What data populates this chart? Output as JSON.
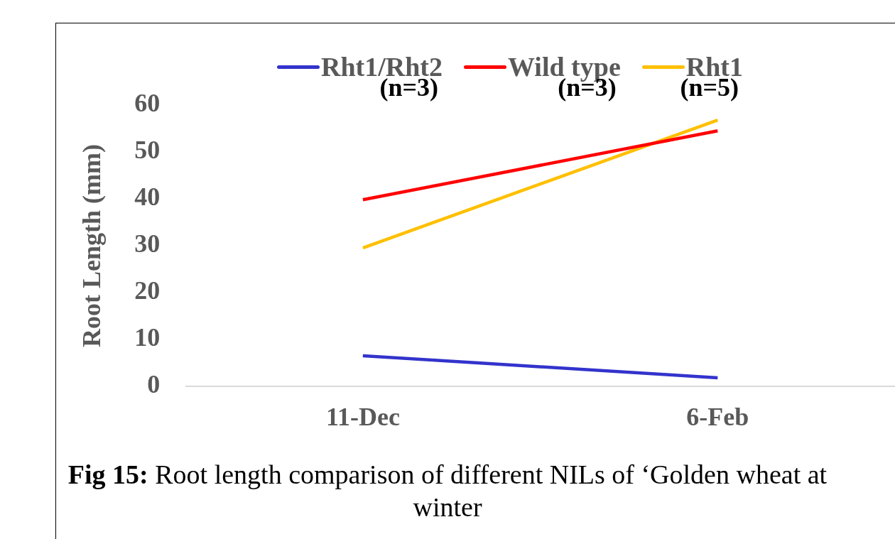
{
  "chart_data": {
    "type": "line",
    "title": "Fig 15:",
    "subtitle": "Root length comparison of different NILs of ‘Golden wheat at winter",
    "ylabel": "Root Length (mm)",
    "categories": [
      "11-Dec",
      "6-Feb"
    ],
    "series": [
      {
        "name": "Rht1/Rht2",
        "color": "#3333cc",
        "values": [
          6.5,
          1.8
        ]
      },
      {
        "name": "Wild type",
        "color": "#ff0000",
        "values": [
          39.8,
          54.5
        ]
      },
      {
        "name": "Rht1",
        "color": "#ffc000",
        "values": [
          29.5,
          56.8
        ]
      }
    ],
    "ylim": [
      0,
      60
    ],
    "yticks": [
      0,
      10,
      20,
      30,
      40,
      50,
      60
    ],
    "grid": false,
    "legend": "top",
    "marker": "none",
    "line_style": "solid",
    "annotations": [
      "(n=3)",
      "(n=3)",
      "(n=5)"
    ]
  }
}
